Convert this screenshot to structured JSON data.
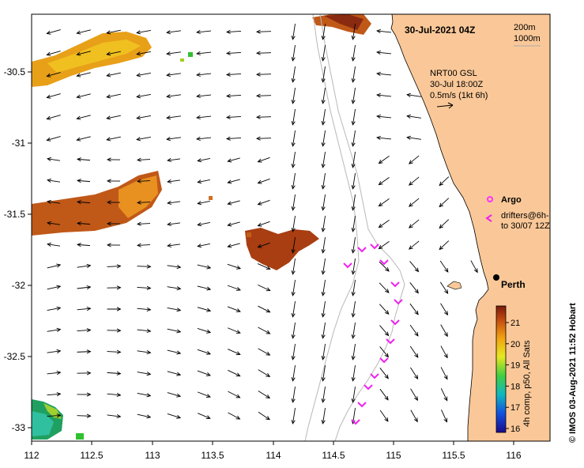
{
  "title": {
    "date_time": "30-Jul-2021 04Z",
    "depth_contour_1": "200m",
    "depth_contour_2": "1000m"
  },
  "current_info": {
    "line1": "NRT00 GSL",
    "line2": "30-Jul 18:00Z",
    "line3": "0.5m/s (1kt 6h)"
  },
  "legend": {
    "argo_label": "Argo",
    "drifters_line1": "drifters@6h-",
    "drifters_line2": "to 30/07 12Z",
    "argo_color": "#ff33ff",
    "drifter_color": "#ee22ee"
  },
  "city": {
    "name": "Perth"
  },
  "colorbar": {
    "ticks": [
      "21",
      "20",
      "19",
      "18",
      "17",
      "16"
    ],
    "side_label": "4h comp, p50, All Sats"
  },
  "credit": "© IMOS 03-Aug-2021 11:52 Hobart",
  "axes": {
    "x_ticks": [
      "112",
      "112.5",
      "113",
      "113.5",
      "114",
      "114.5",
      "115",
      "115.5",
      "116"
    ],
    "y_ticks": [
      "-30.5",
      "-31",
      "-31.5",
      "-32",
      "-32.5",
      "-33"
    ]
  },
  "colors": {
    "land": "#fac898",
    "ocean": "#ffffff",
    "contour": "#b8b8b8",
    "arrow": "#000000"
  }
}
